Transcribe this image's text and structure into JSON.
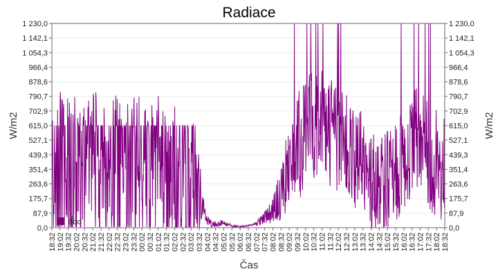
{
  "chart_data": {
    "type": "line",
    "title": "Radiace",
    "xlabel": "Čas",
    "ylabel_left": "W/m2",
    "ylabel_right": "W/m2",
    "ylim": [
      0,
      1230
    ],
    "yticks": [
      "0,0",
      "87,9",
      "175,7",
      "263,6",
      "351,4",
      "439,3",
      "527,1",
      "615,0",
      "702,9",
      "790,7",
      "878,6",
      "966,4",
      "1 054,3",
      "1 142,1",
      "1 230,0"
    ],
    "xticks": [
      "18:32",
      "19:02",
      "19:32",
      "20:02",
      "20:32",
      "21:02",
      "21:32",
      "22:02",
      "22:32",
      "23:02",
      "23:32",
      "00:02",
      "00:32",
      "01:02",
      "01:32",
      "02:02",
      "02:32",
      "03:02",
      "03:32",
      "04:02",
      "04:32",
      "05:02",
      "05:32",
      "06:02",
      "06:32",
      "07:02",
      "07:32",
      "08:02",
      "08:32",
      "09:02",
      "09:32",
      "10:02",
      "10:32",
      "11:02",
      "11:32",
      "12:02",
      "12:32",
      "13:02",
      "13:32",
      "14:02",
      "14:32",
      "15:02",
      "15:32",
      "16:02",
      "16:32",
      "17:02",
      "17:32",
      "18:02",
      "18:32"
    ],
    "grid": true,
    "legend_position": "bottom-left",
    "series": [
      {
        "name": "Bod",
        "color": "#800080",
        "profile": [
          [
            0,
            350
          ],
          [
            0.5,
            420
          ],
          [
            1,
            380
          ],
          [
            1.5,
            400
          ],
          [
            2,
            450
          ],
          [
            2.5,
            420
          ],
          [
            3,
            430
          ],
          [
            3.5,
            420
          ],
          [
            4,
            430
          ],
          [
            4.5,
            410
          ],
          [
            5,
            430
          ],
          [
            5.5,
            420
          ],
          [
            6,
            410
          ],
          [
            6.5,
            400
          ],
          [
            7,
            380
          ],
          [
            7.5,
            360
          ],
          [
            8,
            330
          ],
          [
            8.5,
            290
          ],
          [
            9,
            180
          ],
          [
            9.5,
            40
          ],
          [
            10,
            25
          ],
          [
            10.5,
            30
          ],
          [
            11,
            10
          ],
          [
            11.5,
            8
          ],
          [
            12,
            12
          ],
          [
            12.5,
            25
          ],
          [
            13,
            60
          ],
          [
            13.5,
            110
          ],
          [
            14,
            200
          ],
          [
            14.5,
            380
          ],
          [
            15,
            480
          ],
          [
            15.5,
            560
          ],
          [
            16,
            640
          ],
          [
            16.5,
            620
          ],
          [
            17,
            580
          ],
          [
            17.5,
            520
          ],
          [
            18,
            480
          ],
          [
            18.5,
            420
          ],
          [
            19,
            380
          ],
          [
            19.5,
            300
          ],
          [
            20,
            250
          ],
          [
            20.5,
            280
          ],
          [
            21,
            320
          ],
          [
            21.5,
            420
          ],
          [
            22,
            500
          ],
          [
            22.5,
            520
          ],
          [
            23,
            450
          ],
          [
            23.5,
            380
          ],
          [
            24,
            400
          ]
        ],
        "noise": [
          [
            0,
            400
          ],
          [
            8.8,
            400
          ],
          [
            9.3,
            40
          ],
          [
            10.5,
            15
          ],
          [
            11.2,
            5
          ],
          [
            12.3,
            5
          ],
          [
            12.6,
            20
          ],
          [
            13.5,
            80
          ],
          [
            15,
            350
          ],
          [
            20,
            300
          ],
          [
            24,
            350
          ]
        ]
      }
    ]
  }
}
